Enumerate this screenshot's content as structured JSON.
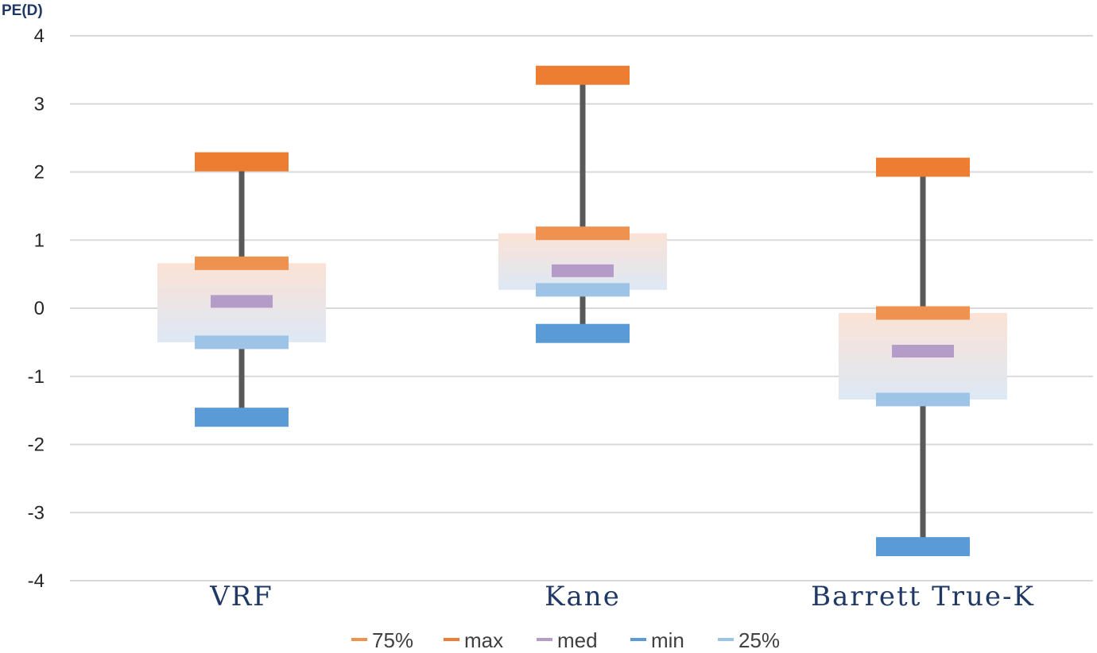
{
  "chart_data": {
    "type": "box",
    "ylabel": "PE(D)",
    "ylim": [
      -4,
      4
    ],
    "yticks": [
      "4",
      "3",
      "2",
      "1",
      "0",
      "-1",
      "-2",
      "-3",
      "-4"
    ],
    "ytick_values": [
      4,
      3,
      2,
      1,
      0,
      -1,
      -2,
      -3,
      -4
    ],
    "grid": true,
    "legend_position": "bottom",
    "categories": [
      "VRF",
      "Kane",
      "Barrett True-K"
    ],
    "series": [
      {
        "name": "75%",
        "values": [
          0.66,
          1.1,
          -0.07
        ],
        "color": "#f0924f"
      },
      {
        "name": "max",
        "values": [
          2.15,
          3.42,
          2.07
        ],
        "color": "#ed7d31"
      },
      {
        "name": "med",
        "values": [
          0.1,
          0.55,
          -0.63
        ],
        "color": "#b59bc8"
      },
      {
        "name": "min",
        "values": [
          -1.6,
          -0.37,
          -3.5
        ],
        "color": "#5b9bd5"
      },
      {
        "name": "25%",
        "values": [
          -0.5,
          0.27,
          -1.34
        ],
        "color": "#9dc3e6"
      }
    ],
    "whisker_color": "#595959",
    "box_top_color": "#fbe2d5",
    "box_bottom_color": "#dde8f5"
  }
}
